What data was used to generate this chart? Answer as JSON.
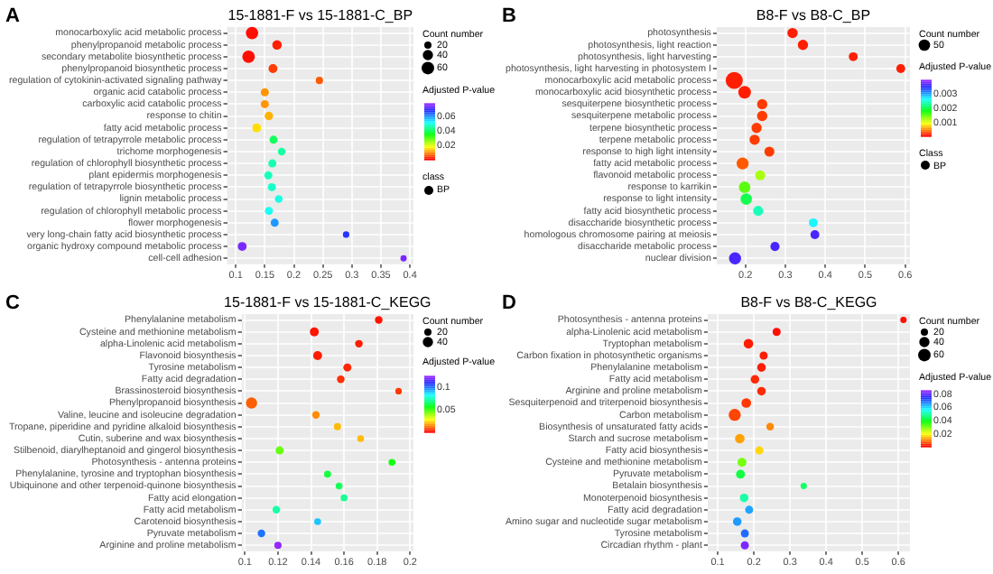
{
  "chart_data": [
    {
      "type": "bubble",
      "orientation": "horizontal",
      "title": "15-1881-F vs 15-1881-C_BP",
      "annotations": [
        "A",
        "Count number"
      ],
      "clabel": "Adjusted P-value",
      "legend_title": "class",
      "legend": "right",
      "grid": true,
      "categories": [
        "monocarboxylic acid metabolic process",
        "phenylpropanoid metabolic process",
        "secondary metabolite biosynthetic process",
        "phenylpropanoid biosynthetic process",
        "regulation of cytokinin-activated signaling pathway",
        "organic acid catabolic process",
        "carboxylic acid catabolic process",
        "response to chitin",
        "fatty acid metabolic process",
        "regulation of tetrapyrrole metabolic process",
        "trichome morphogenesis",
        "regulation of chlorophyll biosynthetic process",
        "plant epidermis morphogenesis",
        "regulation of tetrapyrrole biosynthetic process",
        "lignin metabolic process",
        "regulation of chlorophyll metabolic process",
        "flower morphogenesis",
        "very long-chain fatty acid biosynthetic process",
        "organic hydroxy compound metabolic process",
        "cell-cell adhesion"
      ],
      "series": [
        {
          "name": "BP",
          "values": [
            0.128,
            0.171,
            0.122,
            0.164,
            0.244,
            0.15,
            0.15,
            0.157,
            0.136,
            0.165,
            0.179,
            0.163,
            0.156,
            0.162,
            0.174,
            0.157,
            0.167,
            0.29,
            0.111,
            0.389
          ],
          "sizes": [
            58,
            34,
            60,
            30,
            20,
            25,
            25,
            27,
            30,
            25,
            22,
            25,
            25,
            25,
            23,
            25,
            25,
            16,
            30,
            15
          ],
          "cvalues": [
            0.001,
            0.002,
            0.001,
            0.004,
            0.006,
            0.01,
            0.01,
            0.012,
            0.015,
            0.04,
            0.045,
            0.046,
            0.047,
            0.048,
            0.05,
            0.051,
            0.06,
            0.068,
            0.076,
            0.076
          ]
        }
      ],
      "size_legend": [
        20,
        40,
        60
      ],
      "clim": [
        0,
        0.078
      ],
      "cticks": [
        0.02,
        0.04,
        0.06
      ],
      "xlim": [
        0.085,
        0.406
      ],
      "xticks": [
        0.1,
        0.15,
        0.2,
        0.25,
        0.3,
        0.35,
        0.4
      ]
    },
    {
      "type": "bubble",
      "orientation": "horizontal",
      "title": "B8-F vs B8-C_BP",
      "annotations": [
        "B",
        "Count number"
      ],
      "clabel": "Adjusted P-value",
      "legend_title": "Class",
      "legend": "right",
      "grid": true,
      "categories": [
        "photosynthesis",
        "photosynthesis, light reaction",
        "photosynthesis, light harvesting",
        "photosynthesis, light harvesting in photosystem I",
        "monocarboxylic acid metabolic process",
        "monocarboxylic acid biosynthetic process",
        "sesquiterpene biosynthetic process",
        "sesquiterpene metabolic process",
        "terpene biosynthetic process",
        "terpene metabolic process",
        "response to high light intensity",
        "fatty acid metabolic process",
        "flavonoid metabolic process",
        "response to karrikin",
        "response to light intensity",
        "fatty acid biosynthetic process",
        "disaccharide biosynthetic process",
        "homologous chromosome pairing at meiosis",
        "disaccharide metabolic process",
        "nuclear division"
      ],
      "series": [
        {
          "name": "BP",
          "values": [
            0.318,
            0.344,
            0.47,
            0.589,
            0.172,
            0.198,
            0.242,
            0.242,
            0.228,
            0.223,
            0.26,
            0.193,
            0.237,
            0.198,
            0.202,
            0.232,
            0.37,
            0.374,
            0.274,
            0.174
          ],
          "sizes": [
            40,
            40,
            30,
            30,
            110,
            60,
            40,
            40,
            40,
            40,
            38,
            55,
            38,
            50,
            50,
            38,
            30,
            30,
            32,
            55
          ],
          "cvalues": [
            0.0001,
            0.0001,
            0.0001,
            0.0001,
            0.0001,
            0.0001,
            0.0002,
            0.0002,
            0.0002,
            0.0002,
            0.0002,
            0.0003,
            0.0012,
            0.0015,
            0.002,
            0.0024,
            0.0027,
            0.0037,
            0.0037,
            0.0037
          ]
        }
      ],
      "size_legend": [
        50
      ],
      "clim": [
        0,
        0.004
      ],
      "cticks": [
        0.001,
        0.002,
        0.003
      ],
      "xlim": [
        0.128,
        0.612
      ],
      "xticks": [
        0.2,
        0.3,
        0.4,
        0.5,
        0.6
      ]
    },
    {
      "type": "bubble",
      "orientation": "horizontal",
      "title": "15-1881-F vs 15-1881-C_KEGG",
      "annotations": [
        "C",
        "Count number"
      ],
      "clabel": "Adjusted P-value",
      "grid": true,
      "categories": [
        "Phenylalanine metabolism",
        "Cysteine and methionine metabolism",
        "alpha-Linolenic acid metabolism",
        "Flavonoid biosynthesis",
        "Tyrosine metabolism",
        "Fatty acid degradation",
        "Brassinosteroid biosynthesis",
        "Phenylpropanoid biosynthesis",
        "Valine, leucine and isoleucine degradation",
        "Tropane, piperidine and pyridine alkaloid biosynthesis",
        "Cutin, suberine and wax biosynthesis",
        "Stilbenoid, diarylheptanoid and gingerol biosynthesis",
        "Photosynthesis - antenna proteins",
        "Phenylalanine, tyrosine and tryptophan biosynthesis",
        "Ubiquinone and other terpenoid-quinone biosynthesis",
        "Fatty acid elongation",
        "Fatty acid metabolism",
        "Carotenoid biosynthesis",
        "Pyruvate metabolism",
        "Arginine and proline metabolism"
      ],
      "series": [
        {
          "values": [
            0.181,
            0.142,
            0.169,
            0.144,
            0.162,
            0.158,
            0.193,
            0.104,
            0.143,
            0.156,
            0.17,
            0.121,
            0.189,
            0.15,
            0.157,
            0.16,
            0.119,
            0.144,
            0.11,
            0.12
          ],
          "sizes": [
            22,
            30,
            22,
            30,
            25,
            22,
            16,
            48,
            22,
            20,
            18,
            25,
            18,
            18,
            18,
            18,
            22,
            18,
            22,
            20
          ],
          "cvalues": [
            0.002,
            0.002,
            0.003,
            0.003,
            0.004,
            0.005,
            0.006,
            0.01,
            0.015,
            0.02,
            0.02,
            0.045,
            0.055,
            0.06,
            0.063,
            0.07,
            0.072,
            0.09,
            0.1,
            0.124
          ]
        }
      ],
      "size_legend": [
        20,
        40
      ],
      "clim": [
        0,
        0.124
      ],
      "cticks": [
        0.05,
        0.1
      ],
      "xlim": [
        0.098,
        0.202
      ],
      "xticks": [
        0.1,
        0.12,
        0.14,
        0.16,
        0.18,
        0.2
      ]
    },
    {
      "type": "bubble",
      "orientation": "horizontal",
      "title": "B8-F vs B8-C_KEGG",
      "annotations": [
        "D",
        "Count number"
      ],
      "clabel": "Adjusted P-value",
      "grid": true,
      "categories": [
        "Photosynthesis - antenna proteins",
        "alpha-Linolenic acid metabolism",
        "Tryptophan metabolism",
        "Carbon fixation in photosynthetic organisms",
        "Phenylalanine metabolism",
        "Fatty acid metabolism",
        "Arginine and proline metabolism",
        "Sesquiterpenoid and triterpenoid biosynthesis",
        "Carbon metabolism",
        "Biosynthesis of unsaturated fatty acids",
        "Starch and sucrose metabolism",
        "Fatty acid biosynthesis",
        "Cysteine and methionine metabolism",
        "Pyruvate metabolism",
        "Betalain biosynthesis",
        "Monoterpenoid biosynthesis",
        "Fatty acid degradation",
        "Amino sugar and nucleotide sugar metabolism",
        "Tyrosine metabolism",
        "Circadian rhythm - plant"
      ],
      "series": [
        {
          "values": [
            0.614,
            0.263,
            0.185,
            0.227,
            0.221,
            0.203,
            0.221,
            0.179,
            0.147,
            0.245,
            0.161,
            0.215,
            0.167,
            0.163,
            0.338,
            0.173,
            0.187,
            0.154,
            0.175,
            0.175
          ],
          "sizes": [
            15,
            25,
            35,
            25,
            28,
            28,
            28,
            35,
            55,
            22,
            35,
            25,
            30,
            30,
            15,
            28,
            25,
            28,
            25,
            25
          ],
          "cvalues": [
            0.001,
            0.001,
            0.002,
            0.002,
            0.002,
            0.003,
            0.003,
            0.004,
            0.005,
            0.01,
            0.012,
            0.016,
            0.03,
            0.042,
            0.045,
            0.05,
            0.065,
            0.066,
            0.07,
            0.084
          ]
        }
      ],
      "size_legend": [
        20,
        40,
        60
      ],
      "clim": [
        0,
        0.086
      ],
      "cticks": [
        0.02,
        0.04,
        0.06,
        0.08
      ],
      "xlim": [
        0.072,
        0.632
      ],
      "xticks": [
        0.1,
        0.2,
        0.3,
        0.4,
        0.5,
        0.6
      ]
    }
  ]
}
